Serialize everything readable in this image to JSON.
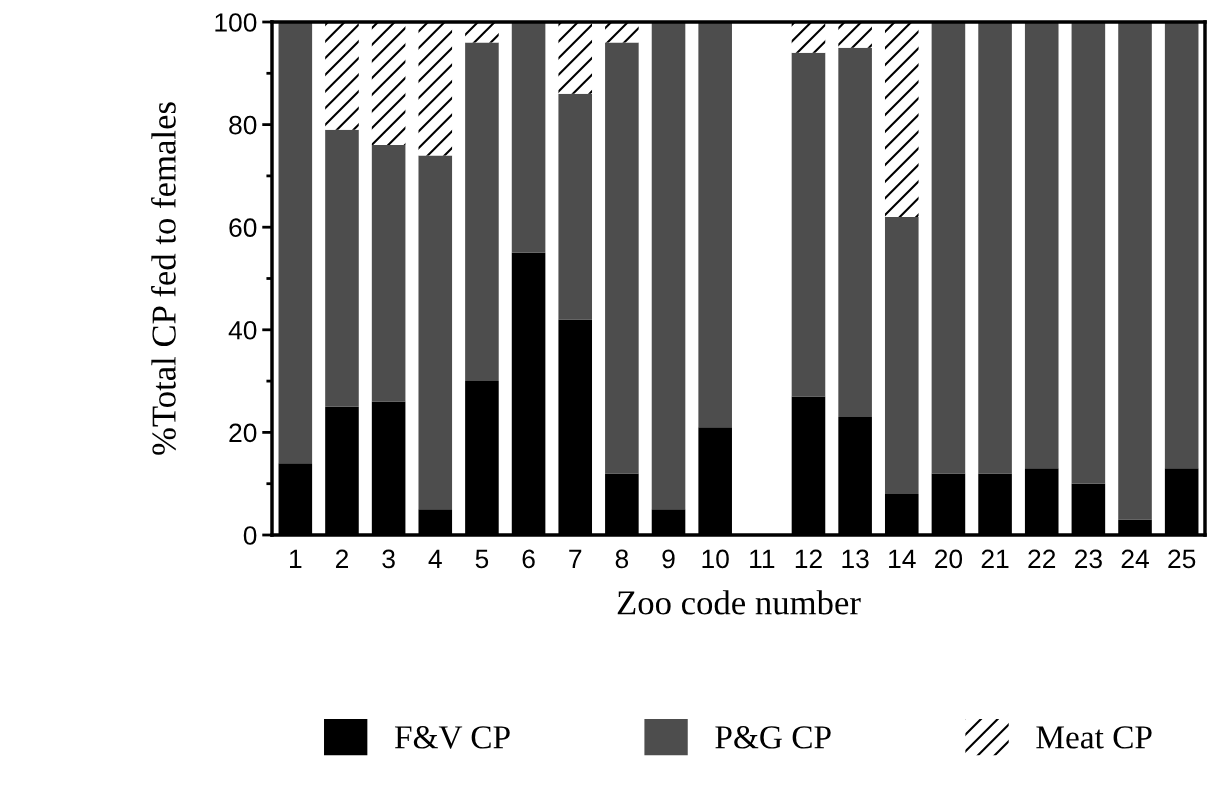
{
  "chart_data": {
    "type": "bar",
    "stacked": true,
    "xlabel": "Zoo code number",
    "ylabel": "%Total CP fed to females",
    "categories": [
      "1",
      "2",
      "3",
      "4",
      "5",
      "6",
      "7",
      "8",
      "9",
      "10",
      "11",
      "12",
      "13",
      "14",
      "20",
      "21",
      "22",
      "23",
      "24",
      "25"
    ],
    "series": [
      {
        "name": "F&V CP",
        "color": "#000000",
        "values": [
          14,
          25,
          26,
          5,
          30,
          55,
          42,
          12,
          5,
          21,
          0,
          27,
          23,
          8,
          12,
          12,
          13,
          10,
          3,
          13
        ]
      },
      {
        "name": "P&G CP",
        "color": "#4d4d4d",
        "values": [
          86,
          54,
          50,
          69,
          66,
          45,
          44,
          84,
          95,
          79,
          0,
          67,
          72,
          54,
          88,
          88,
          87,
          90,
          97,
          87
        ]
      },
      {
        "name": "Meat CP",
        "color": "#ffffff",
        "values": [
          0,
          21,
          24,
          26,
          4,
          0,
          14,
          4,
          0,
          0,
          0,
          6,
          5,
          38,
          0,
          0,
          0,
          0,
          0,
          0
        ]
      }
    ],
    "ylim": [
      0,
      100
    ],
    "yticks": [
      0,
      20,
      40,
      60,
      80,
      100
    ],
    "grid": false,
    "legend": "bottom"
  }
}
